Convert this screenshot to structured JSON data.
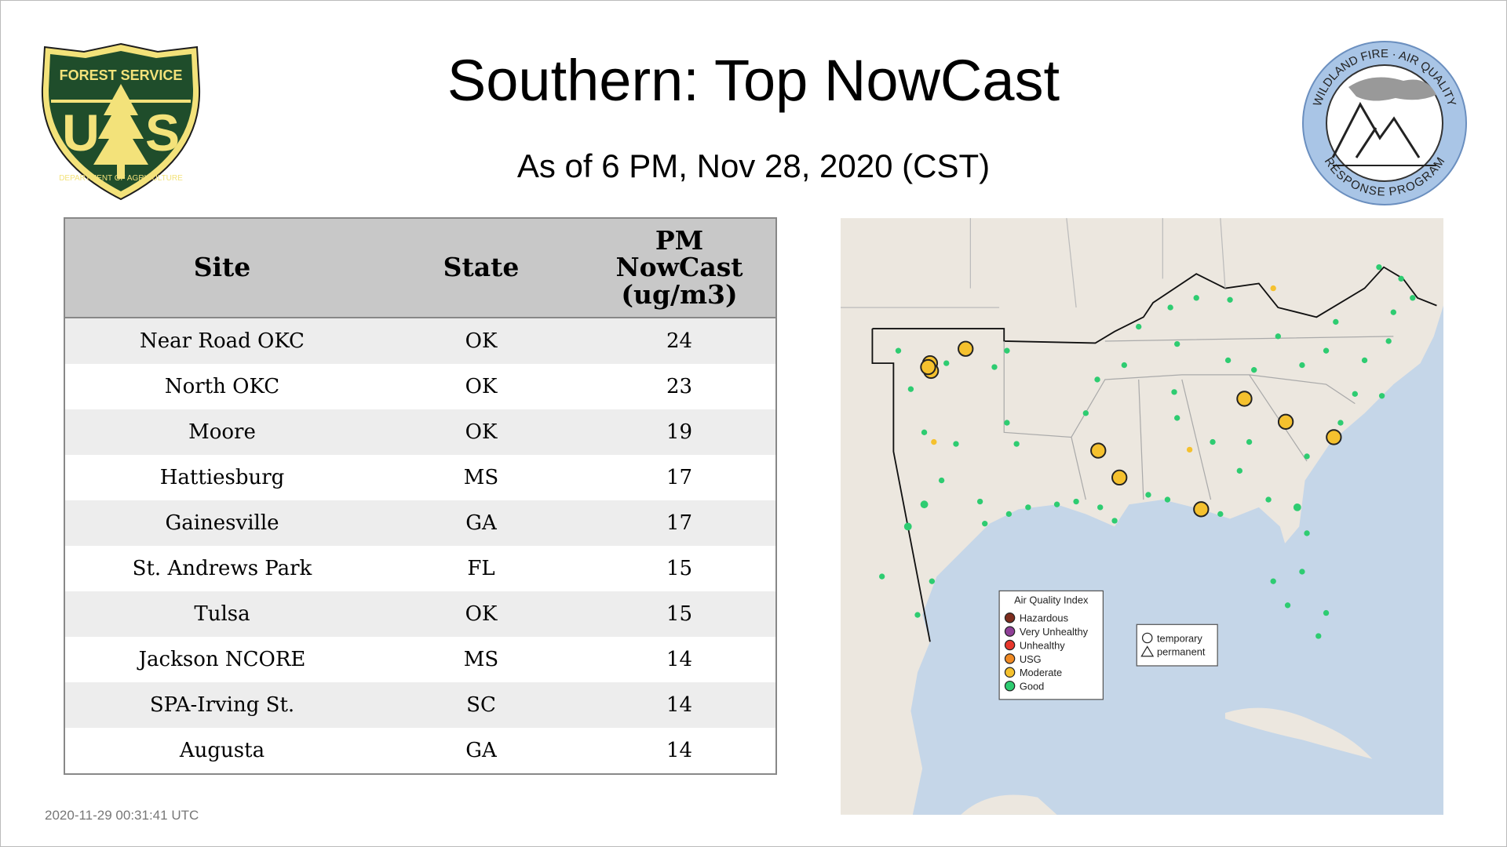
{
  "header": {
    "title": "Southern: Top NowCast",
    "subtitle": "As of  6 PM, Nov 28, 2020 (CST)"
  },
  "logos": {
    "left": {
      "top": "FOREST SERVICE",
      "letters": "U S",
      "bottom": "DEPARTMENT OF AGRICULTURE"
    },
    "right": {
      "top": "WILDLAND FIRE · AIR QUALITY",
      "bottom": "RESPONSE PROGRAM"
    }
  },
  "table": {
    "columns": [
      "Site",
      "State",
      "PM NowCast (ug/m3)"
    ],
    "rows": [
      [
        "Near Road OKC",
        "OK",
        24
      ],
      [
        "North OKC",
        "OK",
        23
      ],
      [
        "Moore",
        "OK",
        19
      ],
      [
        "Hattiesburg",
        "MS",
        17
      ],
      [
        "Gainesville",
        "GA",
        17
      ],
      [
        "St. Andrews Park",
        "FL",
        15
      ],
      [
        "Tulsa",
        "OK",
        15
      ],
      [
        "Jackson NCORE",
        "MS",
        14
      ],
      [
        "SPA-Irving St.",
        "SC",
        14
      ],
      [
        "Augusta",
        "GA",
        14
      ]
    ]
  },
  "map": {
    "legend": {
      "title": "Air Quality Index",
      "items": [
        {
          "label": "Hazardous",
          "color": "#7e2d1e"
        },
        {
          "label": "Very Unhealthy",
          "color": "#8f3f97"
        },
        {
          "label": "Unhealthy",
          "color": "#e8372c"
        },
        {
          "label": "USG",
          "color": "#f08a24"
        },
        {
          "label": "Moderate",
          "color": "#f5c12e"
        },
        {
          "label": "Good",
          "color": "#2ecc71"
        }
      ]
    },
    "shapes": [
      "temporary",
      "permanent"
    ]
  },
  "footer": {
    "timestamp": "2020-11-29 00:31:41 UTC"
  }
}
